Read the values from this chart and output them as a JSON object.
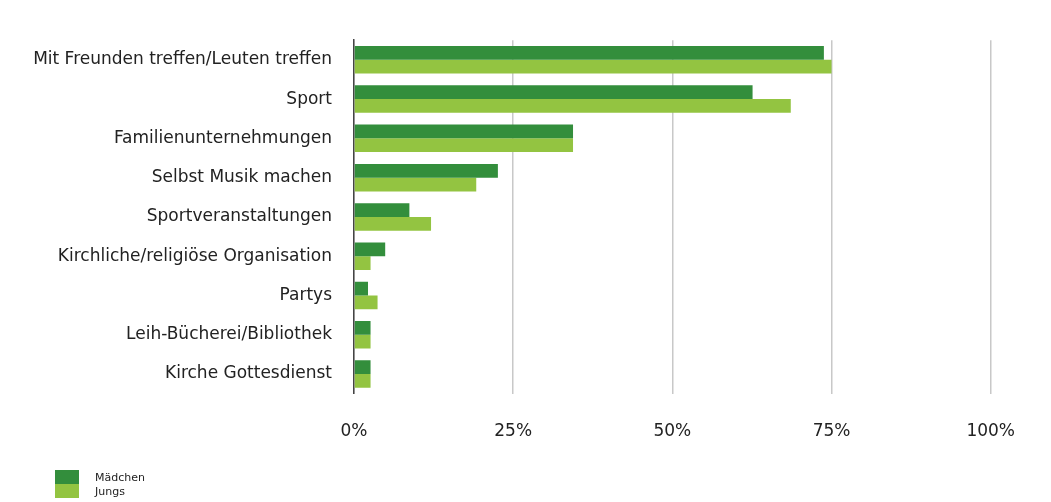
{
  "chart_data": {
    "type": "bar",
    "orientation": "horizontal",
    "categories": [
      "Mit Freunden treffen/Leuten treffen",
      "Sport",
      "Familienunternehmungen",
      "Selbst Musik machen",
      "Sportveranstaltungen",
      "Kirchliche/religiöse Organisation",
      "Partys",
      "Leih-Bücherei/Bibliothek",
      "Kirche Gottesdienst"
    ],
    "series": [
      {
        "name": "Mädchen",
        "color": "#338e3c",
        "values": [
          73.8,
          62.6,
          34.4,
          22.6,
          8.7,
          4.9,
          2.2,
          2.6,
          2.6
        ]
      },
      {
        "name": "Jungs",
        "color": "#93c441",
        "values": [
          75.0,
          68.6,
          34.4,
          19.2,
          12.1,
          2.6,
          3.7,
          2.6,
          2.6
        ]
      }
    ],
    "xlim": [
      0,
      100
    ],
    "xticks": [
      {
        "value": 0,
        "label": "0%"
      },
      {
        "value": 25,
        "label": "25%"
      },
      {
        "value": 50,
        "label": "50%"
      },
      {
        "value": 75,
        "label": "75%"
      },
      {
        "value": 100,
        "label": "100%"
      }
    ],
    "grid": "x",
    "legend": "bottom left"
  }
}
